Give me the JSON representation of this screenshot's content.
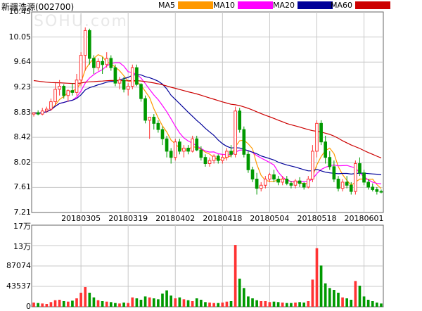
{
  "title": "新疆浩源(002700)",
  "watermark": "SOHU.com",
  "legend": [
    {
      "label": "MA5",
      "color": "#ff9900"
    },
    {
      "label": "MA10",
      "color": "#ff00ff"
    },
    {
      "label": "MA20",
      "color": "#000099"
    },
    {
      "label": "MA60",
      "color": "#cc0000"
    }
  ],
  "colors": {
    "up": "#ff3333",
    "down": "#009900",
    "grid": "#c8c8c8",
    "axis": "#666666"
  },
  "chart_data": [
    {
      "type": "candlestick",
      "name": "price",
      "y_ticks": [
        "10.45",
        "10.05",
        "9.64",
        "9.23",
        "8.83",
        "8.42",
        "8.02",
        "7.61",
        "7.21"
      ],
      "ylim": [
        7.21,
        10.45
      ],
      "x_ticks": [
        {
          "label": "20180305",
          "index": 11
        },
        {
          "label": "20180319",
          "index": 22
        },
        {
          "label": "20180402",
          "index": 33
        },
        {
          "label": "20180418",
          "index": 44
        },
        {
          "label": "20180504",
          "index": 55
        },
        {
          "label": "20180518",
          "index": 66
        },
        {
          "label": "20180601",
          "index": 77
        }
      ],
      "ohlc": [
        [
          8.8,
          8.82,
          8.76,
          8.82
        ],
        [
          8.82,
          8.86,
          8.78,
          8.8
        ],
        [
          8.8,
          8.9,
          8.78,
          8.85
        ],
        [
          8.85,
          8.92,
          8.82,
          8.88
        ],
        [
          8.88,
          9.05,
          8.85,
          9.0
        ],
        [
          9.0,
          9.3,
          8.95,
          9.2
        ],
        [
          9.2,
          9.35,
          9.1,
          9.25
        ],
        [
          9.25,
          9.28,
          9.05,
          9.1
        ],
        [
          9.1,
          9.2,
          9.0,
          9.18
        ],
        [
          9.18,
          9.3,
          9.1,
          9.15
        ],
        [
          9.15,
          9.45,
          9.1,
          9.35
        ],
        [
          9.35,
          9.8,
          9.25,
          9.75
        ],
        [
          9.75,
          10.2,
          9.5,
          10.15
        ],
        [
          10.15,
          10.18,
          9.6,
          9.7
        ],
        [
          9.7,
          9.75,
          9.45,
          9.55
        ],
        [
          9.55,
          9.7,
          9.5,
          9.65
        ],
        [
          9.65,
          9.72,
          9.45,
          9.6
        ],
        [
          9.6,
          9.8,
          9.55,
          9.7
        ],
        [
          9.7,
          9.75,
          9.5,
          9.55
        ],
        [
          9.55,
          9.6,
          9.25,
          9.3
        ],
        [
          9.3,
          9.4,
          9.2,
          9.35
        ],
        [
          9.35,
          9.4,
          9.15,
          9.2
        ],
        [
          9.2,
          9.3,
          9.1,
          9.25
        ],
        [
          9.25,
          9.6,
          9.2,
          9.55
        ],
        [
          9.55,
          9.6,
          9.25,
          9.28
        ],
        [
          9.28,
          9.3,
          9.0,
          9.05
        ],
        [
          9.05,
          9.1,
          8.65,
          8.7
        ],
        [
          8.7,
          8.75,
          8.4,
          8.75
        ],
        [
          8.75,
          8.8,
          8.55,
          8.65
        ],
        [
          8.65,
          8.7,
          8.5,
          8.55
        ],
        [
          8.55,
          8.6,
          8.3,
          8.4
        ],
        [
          8.4,
          8.45,
          8.1,
          8.2
        ],
        [
          8.2,
          8.25,
          8.0,
          8.1
        ],
        [
          8.1,
          8.4,
          8.05,
          8.35
        ],
        [
          8.35,
          8.4,
          8.15,
          8.2
        ],
        [
          8.2,
          8.3,
          8.1,
          8.25
        ],
        [
          8.25,
          8.3,
          8.15,
          8.2
        ],
        [
          8.2,
          8.45,
          8.18,
          8.4
        ],
        [
          8.4,
          8.45,
          8.2,
          8.22
        ],
        [
          8.22,
          8.28,
          8.05,
          8.1
        ],
        [
          8.1,
          8.15,
          7.95,
          8.0
        ],
        [
          8.0,
          8.1,
          7.95,
          8.05
        ],
        [
          8.05,
          8.15,
          8.0,
          8.12
        ],
        [
          8.12,
          8.15,
          8.0,
          8.05
        ],
        [
          8.05,
          8.15,
          8.0,
          8.1
        ],
        [
          8.1,
          8.25,
          8.05,
          8.2
        ],
        [
          8.2,
          8.3,
          8.1,
          8.15
        ],
        [
          8.15,
          8.92,
          8.1,
          8.85
        ],
        [
          8.85,
          8.9,
          8.5,
          8.55
        ],
        [
          8.55,
          8.6,
          8.1,
          8.15
        ],
        [
          8.15,
          8.2,
          7.85,
          7.9
        ],
        [
          7.9,
          7.95,
          7.7,
          7.75
        ],
        [
          7.75,
          7.85,
          7.5,
          7.6
        ],
        [
          7.6,
          7.7,
          7.55,
          7.65
        ],
        [
          7.65,
          7.8,
          7.6,
          7.75
        ],
        [
          7.75,
          7.85,
          7.7,
          7.82
        ],
        [
          7.82,
          7.9,
          7.7,
          7.75
        ],
        [
          7.75,
          7.8,
          7.65,
          7.7
        ],
        [
          7.7,
          7.8,
          7.65,
          7.75
        ],
        [
          7.75,
          7.8,
          7.65,
          7.68
        ],
        [
          7.68,
          7.72,
          7.6,
          7.65
        ],
        [
          7.65,
          7.75,
          7.6,
          7.72
        ],
        [
          7.72,
          7.78,
          7.62,
          7.68
        ],
        [
          7.68,
          7.7,
          7.58,
          7.62
        ],
        [
          7.62,
          7.8,
          7.6,
          7.75
        ],
        [
          7.75,
          8.3,
          7.7,
          8.2
        ],
        [
          8.2,
          8.7,
          8.1,
          8.65
        ],
        [
          8.65,
          8.7,
          8.3,
          8.35
        ],
        [
          8.35,
          8.45,
          8.0,
          8.1
        ],
        [
          8.1,
          8.2,
          7.9,
          7.95
        ],
        [
          7.95,
          8.05,
          7.7,
          7.75
        ],
        [
          7.75,
          7.8,
          7.55,
          7.6
        ],
        [
          7.6,
          7.75,
          7.55,
          7.7
        ],
        [
          7.7,
          7.8,
          7.6,
          7.65
        ],
        [
          7.65,
          7.7,
          7.5,
          7.55
        ],
        [
          7.55,
          8.05,
          7.5,
          8.0
        ],
        [
          8.0,
          8.1,
          7.8,
          7.85
        ],
        [
          7.85,
          7.9,
          7.65,
          7.7
        ],
        [
          7.7,
          7.75,
          7.58,
          7.62
        ],
        [
          7.62,
          7.68,
          7.55,
          7.58
        ],
        [
          7.58,
          7.62,
          7.5,
          7.55
        ],
        [
          7.55,
          7.58,
          7.52,
          7.54
        ]
      ]
    },
    {
      "type": "bar",
      "name": "volume",
      "y_ticks": [
        "17万",
        "13万",
        "87074",
        "43537",
        "0"
      ],
      "ylim": [
        0,
        174148
      ],
      "values": [
        9000,
        8000,
        7000,
        6000,
        10000,
        14000,
        15000,
        12000,
        11000,
        13000,
        18000,
        30000,
        42000,
        30000,
        20000,
        14000,
        12000,
        11000,
        10000,
        8000,
        7000,
        9000,
        8000,
        20000,
        18000,
        15000,
        22000,
        20000,
        18000,
        16000,
        28000,
        35000,
        24000,
        18000,
        20000,
        16000,
        14000,
        12000,
        18000,
        15000,
        10000,
        9000,
        8000,
        8000,
        9000,
        11000,
        12000,
        132000,
        60000,
        40000,
        22000,
        18000,
        14000,
        12000,
        12000,
        10000,
        11000,
        10000,
        9000,
        8000,
        8000,
        9000,
        10000,
        9000,
        12000,
        58000,
        125000,
        88000,
        50000,
        40000,
        36000,
        30000,
        20000,
        18000,
        15000,
        55000,
        45000,
        22000,
        15000,
        12000,
        9000,
        7000
      ],
      "ups": [
        true,
        false,
        true,
        true,
        true,
        true,
        true,
        false,
        true,
        false,
        true,
        true,
        true,
        false,
        false,
        true,
        false,
        true,
        false,
        false,
        true,
        false,
        true,
        true,
        false,
        false,
        false,
        true,
        false,
        false,
        false,
        false,
        false,
        true,
        false,
        true,
        false,
        true,
        false,
        false,
        false,
        true,
        true,
        false,
        true,
        true,
        false,
        true,
        false,
        false,
        false,
        false,
        false,
        true,
        true,
        true,
        false,
        false,
        true,
        false,
        false,
        true,
        false,
        false,
        true,
        true,
        true,
        false,
        false,
        false,
        false,
        false,
        true,
        false,
        false,
        true,
        false,
        false,
        false,
        false,
        false,
        false
      ]
    }
  ]
}
